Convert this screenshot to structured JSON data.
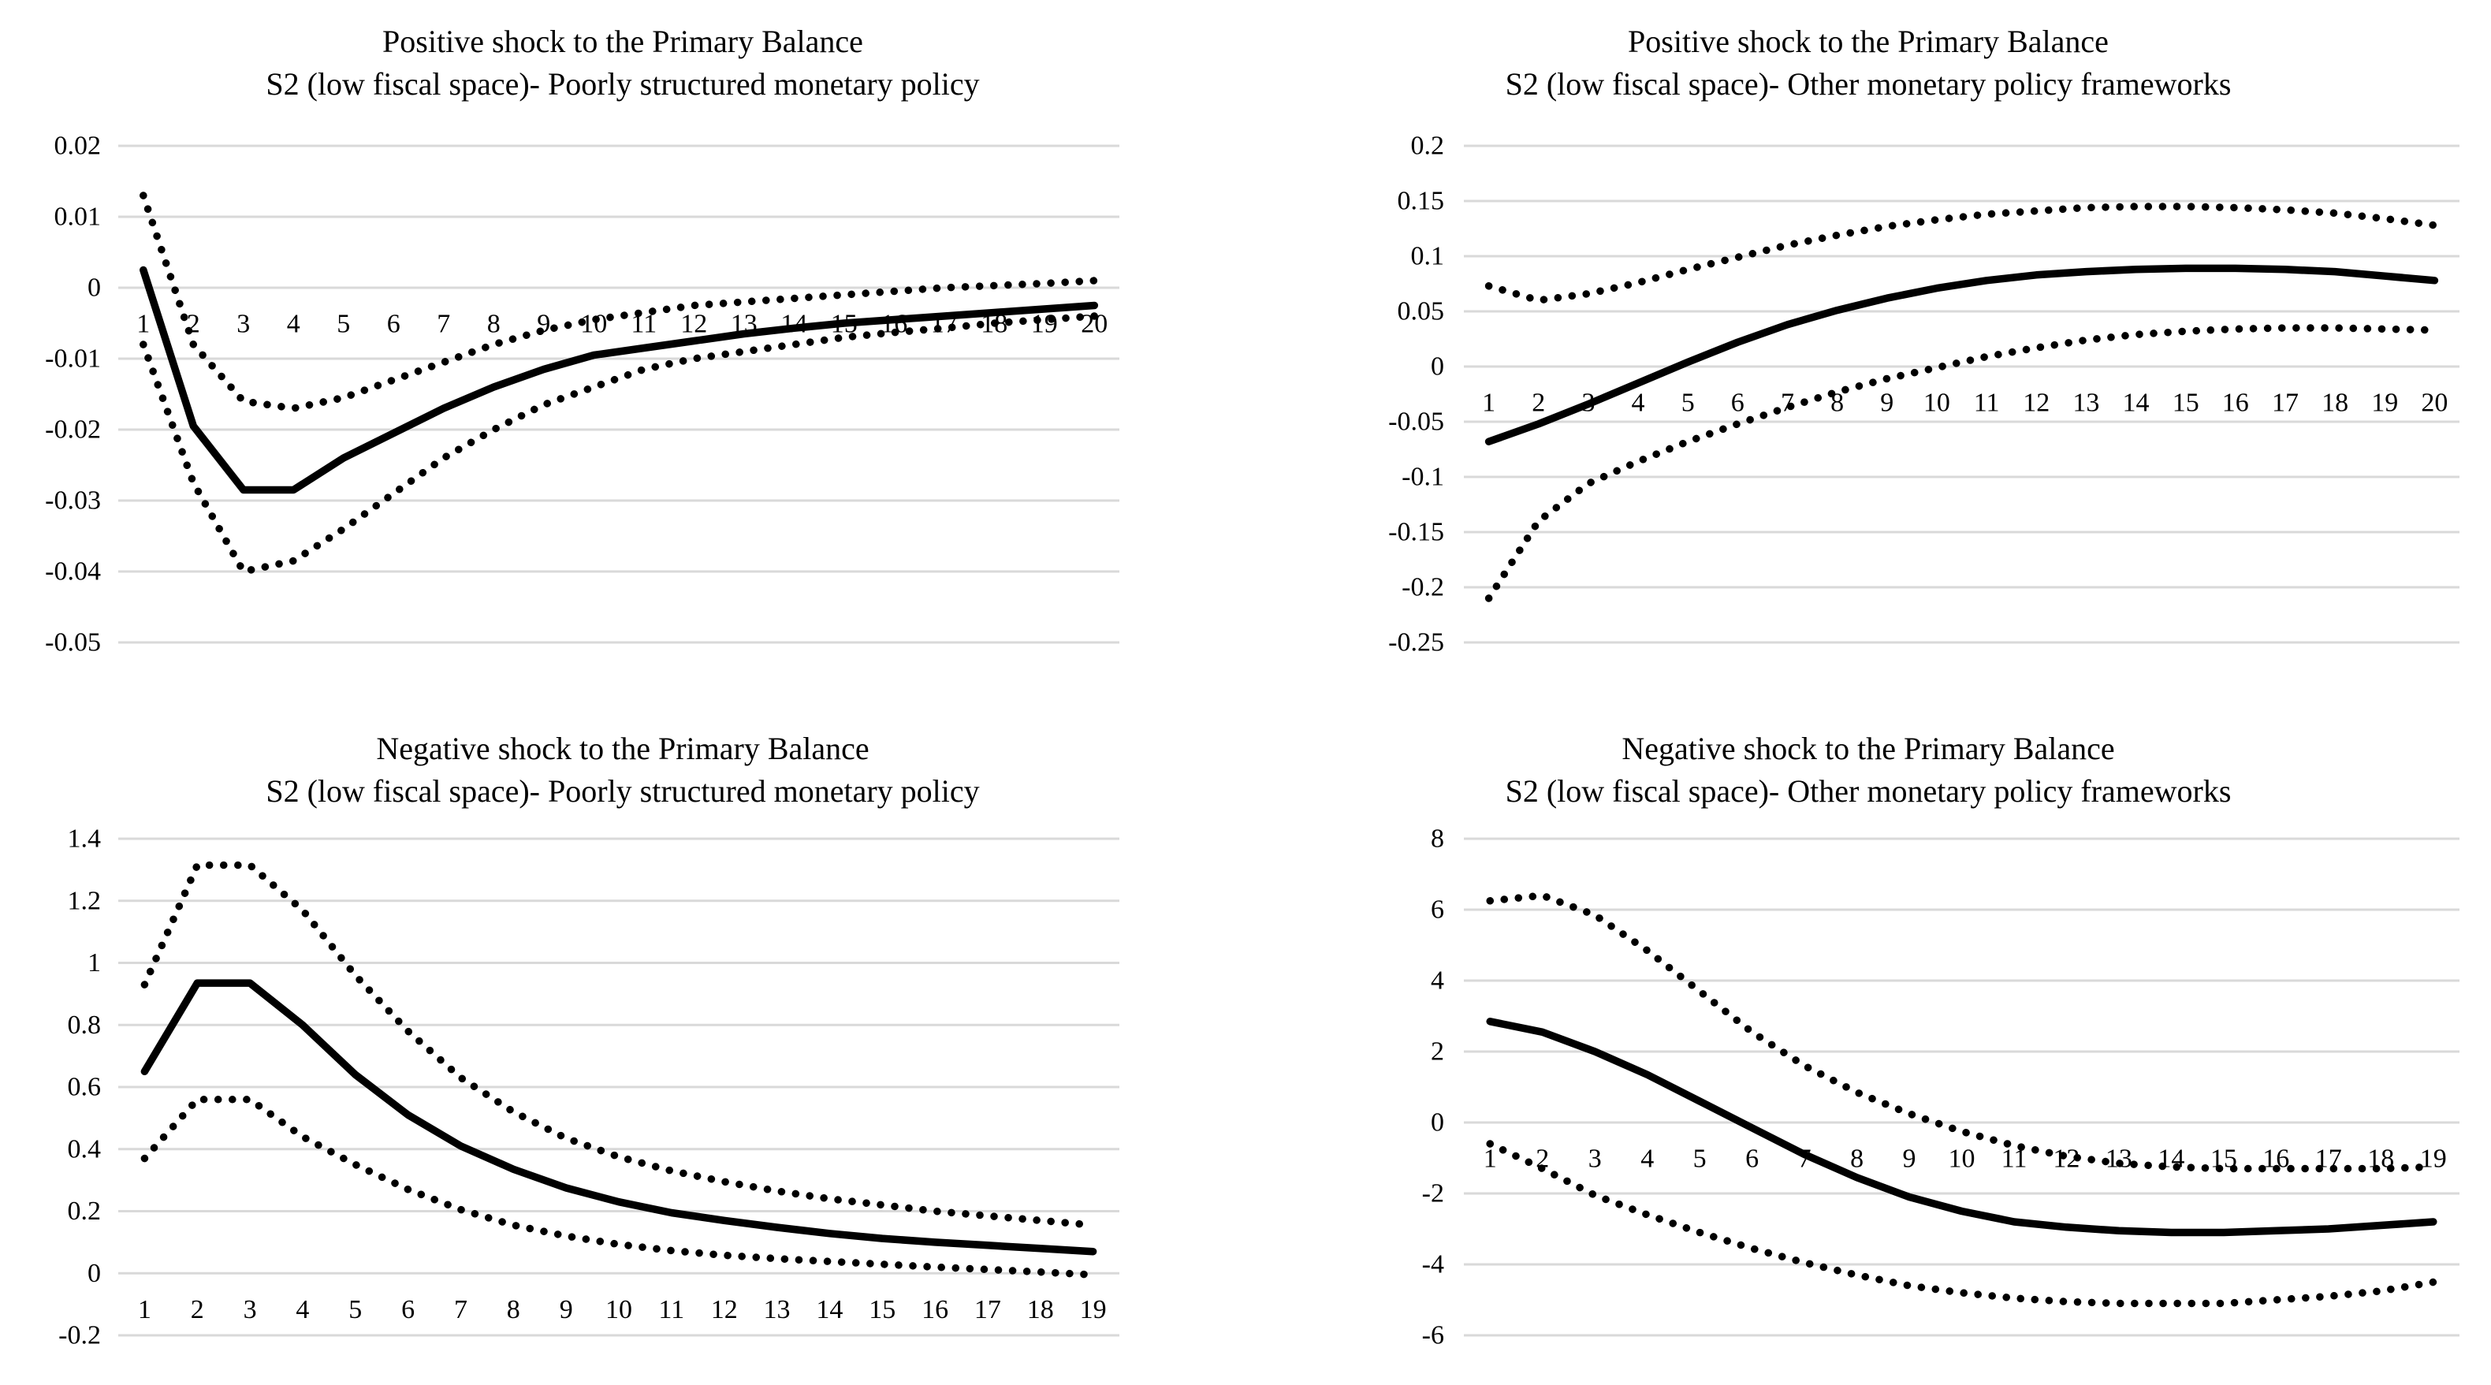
{
  "figure": {
    "background": "#ffffff",
    "colors": {
      "line": "#000000",
      "grid": "#d9d9d9",
      "text": "#000000"
    }
  },
  "chart_data": [
    {
      "type": "line",
      "title_line1": "Positive shock to the Primary Balance",
      "title_line2": "S2 (low fiscal space)- Poorly structured monetary policy",
      "xlabel": "",
      "ylabel": "",
      "grid": "horizontal",
      "legend_position": "none",
      "ylim": [
        -0.05,
        0.02
      ],
      "y_ticks": [
        "0.02",
        "0.01",
        "0",
        "-0.01",
        "-0.02",
        "-0.03",
        "-0.04",
        "-0.05"
      ],
      "y_tick_values": [
        0.02,
        0.01,
        0,
        -0.01,
        -0.02,
        -0.03,
        -0.04,
        -0.05
      ],
      "x_ticks": [
        "1",
        "2",
        "3",
        "4",
        "5",
        "6",
        "7",
        "8",
        "9",
        "10",
        "11",
        "12",
        "13",
        "14",
        "15",
        "16",
        "17",
        "18",
        "19",
        "20"
      ],
      "series": [
        {
          "name": "upper-confidence-band",
          "style": "dotted",
          "values": [
            0.013,
            -0.008,
            -0.016,
            -0.017,
            -0.0155,
            -0.013,
            -0.0105,
            -0.008,
            -0.006,
            -0.0045,
            -0.0035,
            -0.0025,
            -0.002,
            -0.0015,
            -0.001,
            -0.0005,
            0.0,
            0.0003,
            0.0006,
            0.001
          ]
        },
        {
          "name": "impulse-response",
          "style": "solid",
          "values": [
            0.0025,
            -0.0195,
            -0.0285,
            -0.0285,
            -0.024,
            -0.0205,
            -0.017,
            -0.014,
            -0.0115,
            -0.0095,
            -0.0085,
            -0.0075,
            -0.0065,
            -0.0057,
            -0.005,
            -0.0045,
            -0.004,
            -0.0035,
            -0.003,
            -0.0025
          ]
        },
        {
          "name": "lower-confidence-band",
          "style": "dotted",
          "values": [
            -0.008,
            -0.0275,
            -0.04,
            -0.0385,
            -0.034,
            -0.029,
            -0.024,
            -0.02,
            -0.0165,
            -0.014,
            -0.0115,
            -0.01,
            -0.009,
            -0.008,
            -0.007,
            -0.0063,
            -0.0057,
            -0.005,
            -0.0045,
            -0.004
          ]
        }
      ]
    },
    {
      "type": "line",
      "title_line1": "Positive shock to the Primary Balance",
      "title_line2": "S2 (low fiscal space)- Other monetary policy frameworks",
      "xlabel": "",
      "ylabel": "",
      "grid": "horizontal",
      "legend_position": "none",
      "ylim": [
        -0.25,
        0.2
      ],
      "y_ticks": [
        "0.2",
        "0.15",
        "0.1",
        "0.05",
        "0",
        "-0.05",
        "-0.1",
        "-0.15",
        "-0.2",
        "-0.25"
      ],
      "y_tick_values": [
        0.2,
        0.15,
        0.1,
        0.05,
        0,
        -0.05,
        -0.1,
        -0.15,
        -0.2,
        -0.25
      ],
      "x_ticks": [
        "1",
        "2",
        "3",
        "4",
        "5",
        "6",
        "7",
        "8",
        "9",
        "10",
        "11",
        "12",
        "13",
        "14",
        "15",
        "16",
        "17",
        "18",
        "19",
        "20"
      ],
      "series": [
        {
          "name": "upper-confidence-band",
          "style": "dotted",
          "values": [
            0.073,
            0.06,
            0.066,
            0.076,
            0.088,
            0.099,
            0.11,
            0.119,
            0.127,
            0.133,
            0.138,
            0.141,
            0.144,
            0.145,
            0.145,
            0.144,
            0.142,
            0.139,
            0.134,
            0.128
          ]
        },
        {
          "name": "impulse-response",
          "style": "solid",
          "values": [
            -0.068,
            -0.052,
            -0.034,
            -0.015,
            0.004,
            0.022,
            0.038,
            0.051,
            0.062,
            0.071,
            0.078,
            0.083,
            0.086,
            0.088,
            0.089,
            0.089,
            0.088,
            0.086,
            0.082,
            0.078
          ]
        },
        {
          "name": "lower-confidence-band",
          "style": "dotted",
          "values": [
            -0.21,
            -0.14,
            -0.106,
            -0.086,
            -0.068,
            -0.052,
            -0.037,
            -0.023,
            -0.011,
            -0.001,
            0.009,
            0.017,
            0.024,
            0.029,
            0.032,
            0.034,
            0.035,
            0.035,
            0.034,
            0.033
          ]
        }
      ]
    },
    {
      "type": "line",
      "title_line1": "Negative shock to the Primary Balance",
      "title_line2": "S2 (low fiscal space)- Poorly structured monetary policy",
      "xlabel": "",
      "ylabel": "",
      "grid": "horizontal",
      "legend_position": "none",
      "ylim": [
        -0.2,
        1.4
      ],
      "y_ticks": [
        "1.4",
        "1.2",
        "1",
        "0.8",
        "0.6",
        "0.4",
        "0.2",
        "0",
        "-0.2"
      ],
      "y_tick_values": [
        1.4,
        1.2,
        1,
        0.8,
        0.6,
        0.4,
        0.2,
        0,
        -0.2
      ],
      "x_ticks": [
        "1",
        "2",
        "3",
        "4",
        "5",
        "6",
        "7",
        "8",
        "9",
        "10",
        "11",
        "12",
        "13",
        "14",
        "15",
        "16",
        "17",
        "18",
        "19"
      ],
      "series": [
        {
          "name": "upper-confidence-band",
          "style": "dotted",
          "values": [
            0.93,
            1.315,
            1.315,
            1.17,
            0.96,
            0.78,
            0.63,
            0.52,
            0.435,
            0.375,
            0.33,
            0.295,
            0.265,
            0.24,
            0.22,
            0.2,
            0.185,
            0.17,
            0.155
          ]
        },
        {
          "name": "impulse-response",
          "style": "solid",
          "values": [
            0.65,
            0.935,
            0.935,
            0.8,
            0.64,
            0.51,
            0.41,
            0.335,
            0.275,
            0.23,
            0.195,
            0.17,
            0.148,
            0.128,
            0.112,
            0.1,
            0.09,
            0.08,
            0.07
          ]
        },
        {
          "name": "lower-confidence-band",
          "style": "dotted",
          "values": [
            0.37,
            0.56,
            0.56,
            0.44,
            0.35,
            0.27,
            0.205,
            0.155,
            0.12,
            0.093,
            0.073,
            0.058,
            0.047,
            0.038,
            0.029,
            0.02,
            0.012,
            0.004,
            -0.005
          ]
        }
      ]
    },
    {
      "type": "line",
      "title_line1": "Negative shock to the Primary Balance",
      "title_line2": "S2 (low fiscal space)- Other monetary policy frameworks",
      "xlabel": "",
      "ylabel": "",
      "grid": "horizontal",
      "legend_position": "none",
      "ylim": [
        -6,
        8
      ],
      "y_ticks": [
        "8",
        "6",
        "4",
        "2",
        "0",
        "-2",
        "-4",
        "-6"
      ],
      "y_tick_values": [
        8,
        6,
        4,
        2,
        0,
        -2,
        -4,
        -6
      ],
      "x_ticks": [
        "1",
        "2",
        "3",
        "4",
        "5",
        "6",
        "7",
        "8",
        "9",
        "10",
        "11",
        "12",
        "13",
        "14",
        "15",
        "16",
        "17",
        "18",
        "19"
      ],
      "series": [
        {
          "name": "upper-confidence-band",
          "style": "dotted",
          "values": [
            6.25,
            6.4,
            5.85,
            4.85,
            3.7,
            2.55,
            1.6,
            0.85,
            0.25,
            -0.25,
            -0.65,
            -0.95,
            -1.15,
            -1.25,
            -1.3,
            -1.3,
            -1.3,
            -1.3,
            -1.25
          ]
        },
        {
          "name": "impulse-response",
          "style": "solid",
          "values": [
            2.85,
            2.55,
            2.0,
            1.35,
            0.6,
            -0.15,
            -0.9,
            -1.55,
            -2.1,
            -2.5,
            -2.8,
            -2.95,
            -3.05,
            -3.1,
            -3.1,
            -3.05,
            -3.0,
            -2.9,
            -2.8
          ]
        },
        {
          "name": "lower-confidence-band",
          "style": "dotted",
          "values": [
            -0.6,
            -1.3,
            -2.05,
            -2.6,
            -3.1,
            -3.55,
            -3.95,
            -4.3,
            -4.6,
            -4.8,
            -4.95,
            -5.05,
            -5.1,
            -5.1,
            -5.1,
            -5.0,
            -4.9,
            -4.75,
            -4.5
          ]
        }
      ]
    }
  ]
}
